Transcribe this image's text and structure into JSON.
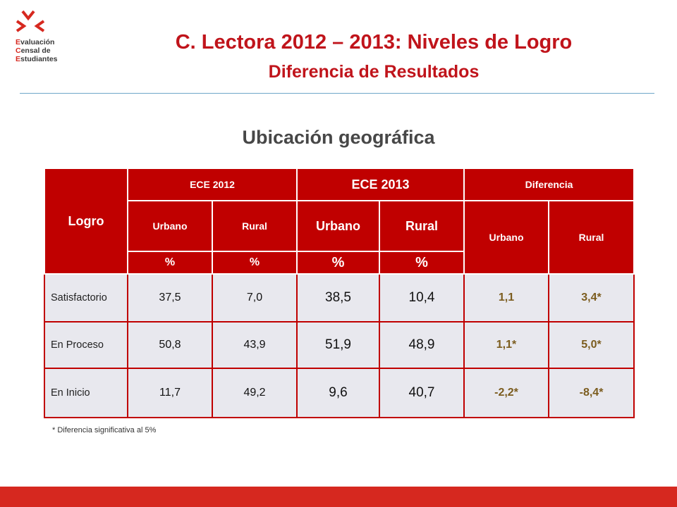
{
  "logo": {
    "line1_initial": "E",
    "line1_rest": "valuación",
    "line2_initial": "C",
    "line2_rest": "ensal de",
    "line3_initial": "E",
    "line3_rest": "studiantes"
  },
  "title": "C. Lectora 2012 – 2013: Niveles de Logro",
  "subtitle": "Diferencia de Resultados",
  "section_title": "Ubicación geográfica",
  "table": {
    "logro_header": "Logro",
    "ece2012": "ECE 2012",
    "ece2013": "ECE 2013",
    "diferencia": "Diferencia",
    "urbano": "Urbano",
    "rural": "Rural",
    "pct": "%",
    "rows": [
      {
        "label": "Satisfactorio",
        "u2012": "37,5",
        "r2012": "7,0",
        "u2013": "38,5",
        "r2013": "10,4",
        "du": "1,1",
        "dr": "3,4*"
      },
      {
        "label": "En Proceso",
        "u2012": "50,8",
        "r2012": "43,9",
        "u2013": "51,9",
        "r2013": "48,9",
        "du": "1,1*",
        "dr": "5,0*"
      },
      {
        "label": "En Inicio",
        "u2012": "11,7",
        "r2012": "49,2",
        "u2013": "9,6",
        "r2013": "40,7",
        "du": "-2,2*",
        "dr": "-8,4*"
      }
    ]
  },
  "footnote": "* Diferencia significativa al 5%",
  "colors": {
    "accent": "#c0141b",
    "header_bg": "#c00000",
    "bar": "#d6281f",
    "diff_text": "#7b5c1e"
  }
}
